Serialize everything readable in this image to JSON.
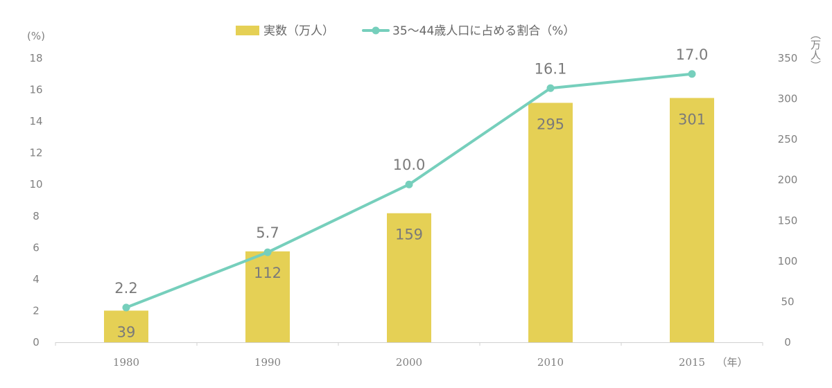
{
  "chart_data": {
    "type": "bar",
    "categories": [
      "1980",
      "1990",
      "2000",
      "2010",
      "2015"
    ],
    "series": [
      {
        "name": "実数（万人）",
        "type": "bar",
        "axis": "right",
        "color": "#E5D055",
        "values": [
          39,
          112,
          159,
          295,
          301
        ]
      },
      {
        "name": "35〜44歳人口に占める割合（%）",
        "type": "line",
        "axis": "left",
        "color": "#76CFBC",
        "values": [
          2.2,
          5.7,
          10.0,
          16.1,
          17.0
        ]
      }
    ],
    "line_value_labels": [
      "2.2",
      "5.7",
      "10.0",
      "16.1",
      "17.0"
    ],
    "left_axis": {
      "unit": "(%)",
      "ylim": [
        0,
        18
      ],
      "ticks": [
        0,
        2,
        4,
        6,
        8,
        10,
        12,
        14,
        16,
        18
      ]
    },
    "right_axis": {
      "unit": "（万人）",
      "ylim": [
        0,
        350
      ],
      "ticks": [
        0,
        50,
        100,
        150,
        200,
        250,
        300,
        350
      ]
    },
    "x_unit": "（年）",
    "legend_position": "top-center",
    "grid": false
  }
}
